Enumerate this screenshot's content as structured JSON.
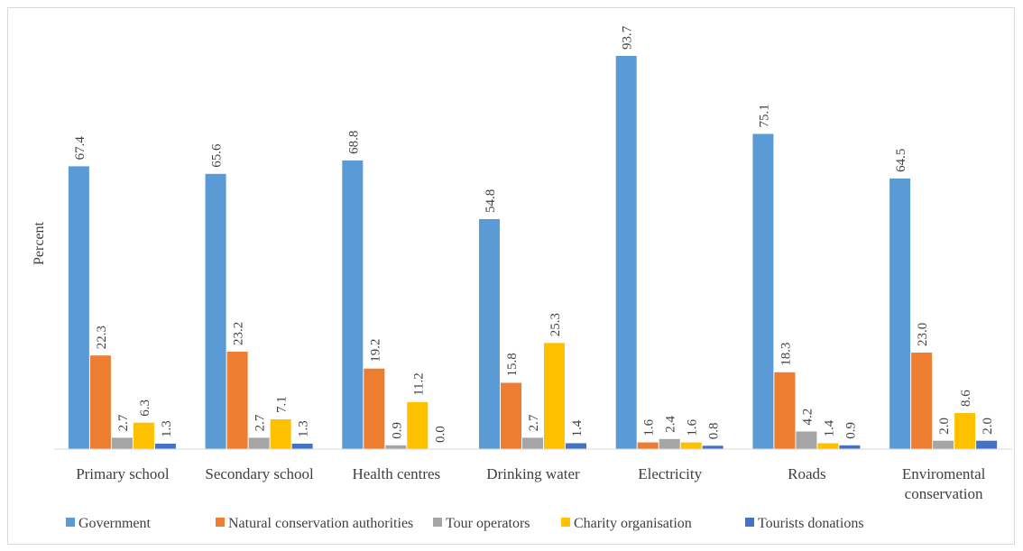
{
  "chart_data": {
    "type": "bar",
    "ylabel": "Percent",
    "ylim": [
      0,
      100
    ],
    "grid": false,
    "legend_position": "bottom",
    "categories": [
      [
        "Primary school"
      ],
      [
        "Secondary school"
      ],
      [
        "Health centres"
      ],
      [
        "Drinking water"
      ],
      [
        "Electricity"
      ],
      [
        "Roads"
      ],
      [
        "Enviromental",
        "conservation"
      ]
    ],
    "series": [
      {
        "name": "Government",
        "color": "#5B9BD5",
        "values": [
          67.4,
          65.6,
          68.8,
          54.8,
          93.7,
          75.1,
          64.5
        ]
      },
      {
        "name": "Natural conservation authorities",
        "color": "#ED7D31",
        "values": [
          22.3,
          23.2,
          19.2,
          15.8,
          1.6,
          18.3,
          23.0
        ]
      },
      {
        "name": "Tour operators",
        "color": "#A5A5A5",
        "values": [
          2.7,
          2.7,
          0.9,
          2.7,
          2.4,
          4.2,
          2.0
        ]
      },
      {
        "name": "Charity organisation",
        "color": "#FFC000",
        "values": [
          6.3,
          7.1,
          11.2,
          25.3,
          1.6,
          1.4,
          8.6
        ]
      },
      {
        "name": "Tourists donations",
        "color": "#4472C4",
        "values": [
          1.3,
          1.3,
          0.0,
          1.4,
          0.8,
          0.9,
          2.0
        ]
      }
    ]
  }
}
